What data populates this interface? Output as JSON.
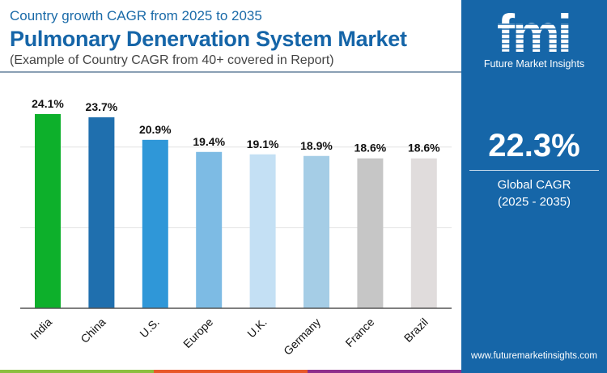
{
  "header": {
    "subtitle": "Country growth CAGR from 2025 to 2035",
    "title": "Pulmonary Denervation System Market",
    "note": "(Example of Country CAGR from 40+ covered in Report)"
  },
  "sidebar": {
    "logo_text": "fmi",
    "brand": "Future Market Insights",
    "global_cagr": "22.3%",
    "global_cagr_label": "Global CAGR",
    "global_cagr_period": "(2025 - 2035)",
    "url": "www.futuremarketinsights.com",
    "color": "#1666a8"
  },
  "chart_data": {
    "type": "bar",
    "categories": [
      "India",
      "China",
      "U.S.",
      "Europe",
      "U.K.",
      "Germany",
      "France",
      "Brazil"
    ],
    "values": [
      24.1,
      23.7,
      20.9,
      19.4,
      19.1,
      18.9,
      18.6,
      18.6
    ],
    "labels": [
      "24.1%",
      "23.7%",
      "20.9%",
      "19.4%",
      "19.1%",
      "18.9%",
      "18.6%",
      "18.6%"
    ],
    "colors": [
      "#0db02b",
      "#1f6fae",
      "#2f97d8",
      "#7dbbe4",
      "#c4e0f4",
      "#a5cde6",
      "#c6c6c6",
      "#e0dcdc"
    ],
    "ylim": [
      0,
      25
    ],
    "grid": true,
    "xlabel": "",
    "ylabel": ""
  }
}
